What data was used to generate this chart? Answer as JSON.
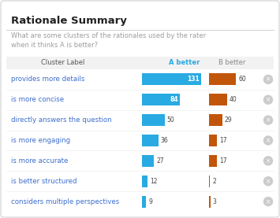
{
  "title": "Rationale Summary",
  "subtitle": "What are some clusters of the rationales used by the rater\nwhen it thinks A is better?",
  "col_label": "Cluster Label",
  "col_a": "A better",
  "col_b": "B better",
  "rows": [
    {
      "label": "provides more details",
      "a": 131,
      "b": 60
    },
    {
      "label": "is more concise",
      "a": 84,
      "b": 40
    },
    {
      "label": "directly answers the question",
      "a": 50,
      "b": 29
    },
    {
      "label": "is more engaging",
      "a": 36,
      "b": 17
    },
    {
      "label": "is more accurate",
      "a": 27,
      "b": 17
    },
    {
      "label": "is better structured",
      "a": 12,
      "b": 2
    },
    {
      "label": "considers multiple perspectives",
      "a": 9,
      "b": 3
    }
  ],
  "max_val": 131,
  "color_a": "#29aae2",
  "color_b": "#c1560a",
  "bg_color": "#ffffff",
  "panel_bg": "#ffffff",
  "header_bg": "#f2f2f2",
  "border_color": "#d0d0d0",
  "title_color": "#212121",
  "subtitle_color": "#9e9e9e",
  "label_color": "#3c6fcd",
  "header_text_color_a": "#29aae2",
  "header_text_color_b": "#888888",
  "icon_color": "#cccccc",
  "row_divider_color": "#eeeeee"
}
